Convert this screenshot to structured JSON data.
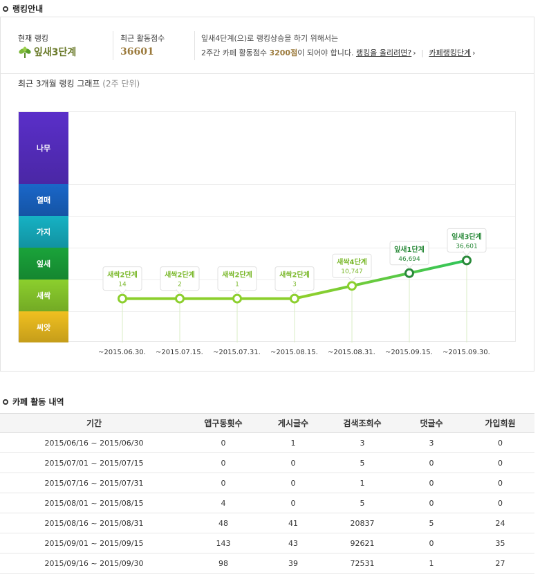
{
  "ranking_section": {
    "title": "랭킹안내"
  },
  "current_rank": {
    "label": "현재 랭킹",
    "value": "잎새3단계"
  },
  "recent_score": {
    "label": "최근 활동점수",
    "value": "36601"
  },
  "next_info": {
    "line1": "잎새4단계(으)로 랭킹상승을 하기 위해서는",
    "line2_prefix": "2주간 카페 활동점수 ",
    "line2_points": "3200점",
    "line2_suffix": "이 되어야 합니다.",
    "link_how": "랭킹을 올리려면?",
    "link_how_suffix": "›",
    "sep": "|",
    "link_levels": "카페랭킹단계",
    "link_levels_suffix": "›"
  },
  "graph": {
    "title": "최근 3개월 랭킹 그래프",
    "subtitle": "(2주 단위)"
  },
  "chart_data": {
    "type": "line",
    "levels": [
      {
        "name": "나무",
        "color": "#5a2fc9"
      },
      {
        "name": "열매",
        "color": "#1a67c9"
      },
      {
        "name": "가지",
        "color": "#16b2c4"
      },
      {
        "name": "잎새",
        "color": "#1aa33a"
      },
      {
        "name": "새싹",
        "color": "#8ccf2d"
      },
      {
        "name": "씨앗",
        "color": "#f0c020"
      }
    ],
    "x": [
      "~2015.06.30.",
      "~2015.07.15.",
      "~2015.07.31.",
      "~2015.08.15.",
      "~2015.08.31.",
      "~2015.09.15.",
      "~2015.09.30."
    ],
    "points": [
      {
        "label": "새싹2단계",
        "score": "14",
        "level": 1.4
      },
      {
        "label": "새싹2단계",
        "score": "2",
        "level": 1.4
      },
      {
        "label": "새싹2단계",
        "score": "1",
        "level": 1.4
      },
      {
        "label": "새싹2단계",
        "score": "3",
        "level": 1.4
      },
      {
        "label": "새싹4단계",
        "score": "10,747",
        "level": 1.8
      },
      {
        "label": "잎새1단계",
        "score": "46,694",
        "level": 2.2
      },
      {
        "label": "잎새3단계",
        "score": "36,601",
        "level": 2.6
      }
    ],
    "line_color_start": "#8ccf2d",
    "line_color_end": "#2fc45a"
  },
  "activity_section": {
    "title": "카페 활동 내역"
  },
  "activity_table": {
    "headers": [
      "기간",
      "앱구동횟수",
      "게시글수",
      "검색조회수",
      "댓글수",
      "가입회원"
    ],
    "rows": [
      [
        "2015/06/16 ~ 2015/06/30",
        "0",
        "1",
        "3",
        "3",
        "0"
      ],
      [
        "2015/07/01 ~ 2015/07/15",
        "0",
        "0",
        "5",
        "0",
        "0"
      ],
      [
        "2015/07/16 ~ 2015/07/31",
        "0",
        "0",
        "1",
        "0",
        "0"
      ],
      [
        "2015/08/01 ~ 2015/08/15",
        "4",
        "0",
        "5",
        "0",
        "0"
      ],
      [
        "2015/08/16 ~ 2015/08/31",
        "48",
        "41",
        "20837",
        "5",
        "24"
      ],
      [
        "2015/09/01 ~ 2015/09/15",
        "143",
        "43",
        "92621",
        "0",
        "35"
      ],
      [
        "2015/09/16 ~ 2015/09/30",
        "98",
        "39",
        "72531",
        "1",
        "27"
      ]
    ]
  }
}
